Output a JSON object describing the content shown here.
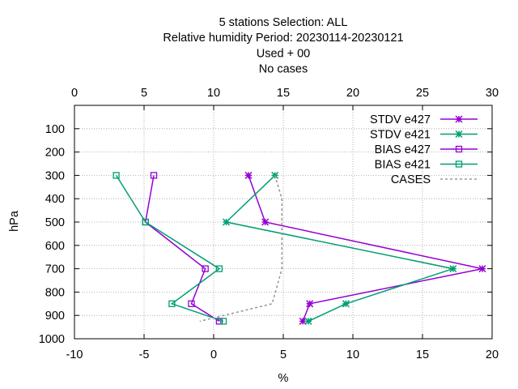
{
  "chart_data": {
    "type": "line",
    "title_lines": [
      "5 stations Selection: ALL",
      "Relative humidity  Period: 20230114-20230121",
      "Used   + 00",
      "No cases"
    ],
    "xlabel": "%",
    "ylabel": "hPa",
    "xlim": [
      -10,
      20
    ],
    "x2lim": [
      0,
      30
    ],
    "ylim": [
      1000,
      0
    ],
    "x_ticks": [
      "-10",
      "-5",
      "0",
      "5",
      "10",
      "15",
      "20"
    ],
    "x2_ticks": [
      "0",
      "5",
      "10",
      "15",
      "20",
      "25",
      "30"
    ],
    "y_ticks": [
      "100",
      "200",
      "300",
      "400",
      "500",
      "600",
      "700",
      "800",
      "900",
      "1000"
    ],
    "grid": true,
    "legend_position": "top-right",
    "series": [
      {
        "name": "STDV e427",
        "axis": "x2",
        "color": "#9400d3",
        "marker": "star",
        "points": [
          [
            12.5,
            300
          ],
          [
            13.7,
            500
          ],
          [
            29.3,
            700
          ],
          [
            16.9,
            850
          ],
          [
            16.4,
            925
          ]
        ]
      },
      {
        "name": "STDV e421",
        "axis": "x2",
        "color": "#009e73",
        "marker": "star",
        "points": [
          [
            14.4,
            300
          ],
          [
            10.9,
            500
          ],
          [
            27.2,
            700
          ],
          [
            19.5,
            850
          ],
          [
            16.8,
            925
          ]
        ]
      },
      {
        "name": "BIAS e427",
        "axis": "x",
        "color": "#9400d3",
        "marker": "square",
        "points": [
          [
            -4.3,
            300
          ],
          [
            -4.9,
            500
          ],
          [
            -0.6,
            700
          ],
          [
            -1.6,
            850
          ],
          [
            0.4,
            925
          ]
        ]
      },
      {
        "name": "BIAS e421",
        "axis": "x",
        "color": "#009e73",
        "marker": "square",
        "points": [
          [
            -7.0,
            300
          ],
          [
            -4.9,
            500
          ],
          [
            0.4,
            700
          ],
          [
            -3.0,
            850
          ],
          [
            0.7,
            925
          ]
        ]
      },
      {
        "name": "CASES",
        "axis": "x2",
        "color": "#999999",
        "marker": "none",
        "dashed": true,
        "points": [
          [
            14.4,
            300
          ],
          [
            14.9,
            400
          ],
          [
            14.9,
            700
          ],
          [
            14.2,
            850
          ],
          [
            9.0,
            925
          ]
        ]
      }
    ]
  }
}
